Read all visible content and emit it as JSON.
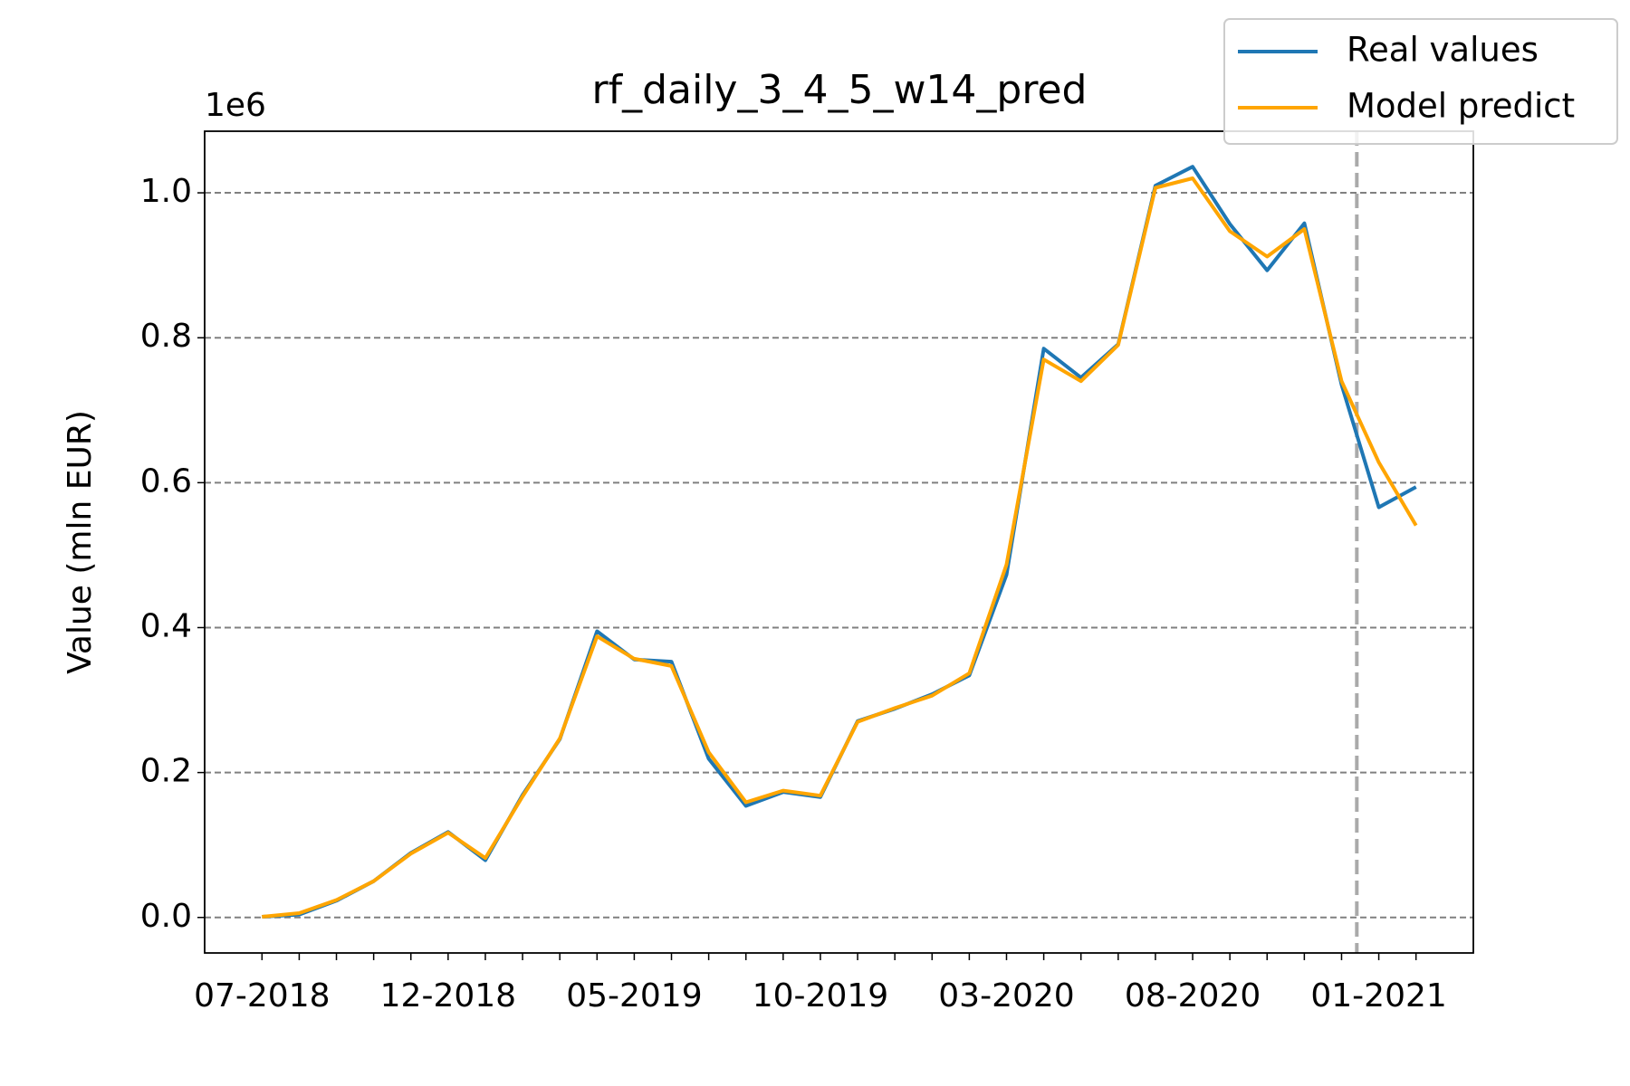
{
  "chart_data": {
    "type": "line",
    "title": "rf_daily_3_4_5_w14_pred",
    "y_label": "Value (mln EUR)",
    "y_offset_label": "1e6",
    "categories": [
      "07-2018",
      null,
      null,
      null,
      null,
      "12-2018",
      null,
      null,
      null,
      null,
      "05-2019",
      null,
      null,
      null,
      null,
      "10-2019",
      null,
      null,
      null,
      null,
      "03-2020",
      null,
      null,
      null,
      null,
      "08-2020",
      null,
      null,
      null,
      null,
      "01-2021",
      null
    ],
    "series": [
      {
        "name": "Real values",
        "color": "#1f77b4",
        "values": [
          0.001,
          0.004,
          0.023,
          0.05,
          0.089,
          0.118,
          0.079,
          0.169,
          0.246,
          0.395,
          0.356,
          0.353,
          0.219,
          0.154,
          0.173,
          0.166,
          0.271,
          0.288,
          0.308,
          0.334,
          0.473,
          0.785,
          0.745,
          0.791,
          1.01,
          1.036,
          0.957,
          0.893,
          0.958,
          0.735,
          0.566,
          0.594
        ]
      },
      {
        "name": "Model predict",
        "color": "#ffa500",
        "values": [
          0.001,
          0.006,
          0.024,
          0.05,
          0.088,
          0.117,
          0.082,
          0.167,
          0.247,
          0.388,
          0.357,
          0.347,
          0.228,
          0.159,
          0.175,
          0.168,
          0.27,
          0.289,
          0.306,
          0.337,
          0.487,
          0.77,
          0.74,
          0.79,
          1.007,
          1.02,
          0.947,
          0.912,
          0.95,
          0.74,
          0.628,
          0.541
        ]
      }
    ],
    "ylim": [
      -0.049,
      1.085
    ],
    "yticks": [
      {
        "value": 0,
        "label": "0.0"
      },
      {
        "value": 0.2,
        "label": "0.2"
      },
      {
        "value": 0.4,
        "label": "0.4"
      },
      {
        "value": 0.6,
        "label": "0.6"
      },
      {
        "value": 0.8,
        "label": "0.8"
      },
      {
        "value": 1,
        "label": "1.0"
      }
    ],
    "grid": true,
    "legend": "upper right"
  }
}
